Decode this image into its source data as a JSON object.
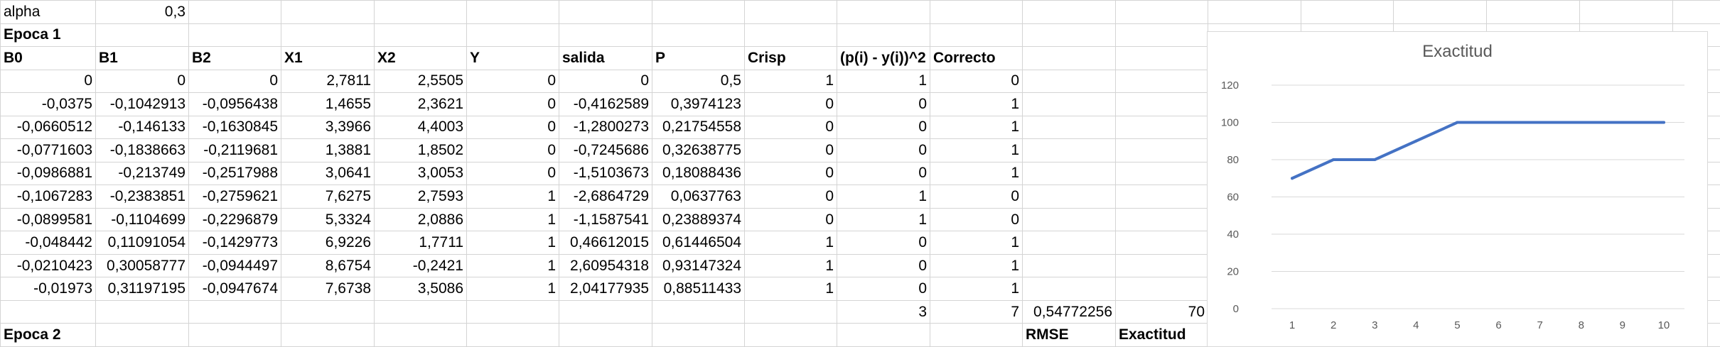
{
  "sheet": {
    "rows": [
      [
        "alpha",
        "0,3",
        "",
        "",
        "",
        "",
        "",
        "",
        "",
        "",
        "",
        "",
        "",
        "",
        "",
        "",
        "",
        "",
        ""
      ],
      [
        "Epoca 1",
        "",
        "",
        "",
        "",
        "",
        "",
        "",
        "",
        "",
        "",
        "",
        "",
        "",
        "",
        "",
        "",
        "",
        ""
      ],
      [
        "B0",
        "B1",
        "B2",
        "X1",
        "X2",
        "Y",
        "salida",
        "P",
        "Crisp",
        "(p(i) - y(i))^2",
        "Correcto",
        "",
        "",
        "",
        "",
        "",
        "",
        "",
        ""
      ],
      [
        "0",
        "0",
        "0",
        "2,7811",
        "2,5505",
        "0",
        "0",
        "0,5",
        "1",
        "1",
        "0",
        "",
        "",
        "",
        "",
        "",
        "",
        "",
        ""
      ],
      [
        "-0,0375",
        "-0,1042913",
        "-0,0956438",
        "1,4655",
        "2,3621",
        "0",
        "-0,4162589",
        "0,3974123",
        "0",
        "0",
        "1",
        "",
        "",
        "",
        "",
        "",
        "",
        "",
        ""
      ],
      [
        "-0,0660512",
        "-0,146133",
        "-0,1630845",
        "3,3966",
        "4,4003",
        "0",
        "-1,2800273",
        "0,21754558",
        "0",
        "0",
        "1",
        "",
        "",
        "",
        "",
        "",
        "",
        "",
        ""
      ],
      [
        "-0,0771603",
        "-0,1838663",
        "-0,2119681",
        "1,3881",
        "1,8502",
        "0",
        "-0,7245686",
        "0,32638775",
        "0",
        "0",
        "1",
        "",
        "",
        "",
        "",
        "",
        "",
        "",
        ""
      ],
      [
        "-0,0986881",
        "-0,213749",
        "-0,2517988",
        "3,0641",
        "3,0053",
        "0",
        "-1,5103673",
        "0,18088436",
        "0",
        "0",
        "1",
        "",
        "",
        "",
        "",
        "",
        "",
        "",
        ""
      ],
      [
        "-0,1067283",
        "-0,2383851",
        "-0,2759621",
        "7,6275",
        "2,7593",
        "1",
        "-2,6864729",
        "0,0637763",
        "0",
        "1",
        "0",
        "",
        "",
        "",
        "",
        "",
        "",
        "",
        ""
      ],
      [
        "-0,0899581",
        "-0,1104699",
        "-0,2296879",
        "5,3324",
        "2,0886",
        "1",
        "-1,1587541",
        "0,23889374",
        "0",
        "1",
        "0",
        "",
        "",
        "",
        "",
        "",
        "",
        "",
        ""
      ],
      [
        "-0,048442",
        "0,11091054",
        "-0,1429773",
        "6,9226",
        "1,7711",
        "1",
        "0,46612015",
        "0,61446504",
        "1",
        "0",
        "1",
        "",
        "",
        "",
        "",
        "",
        "",
        "",
        ""
      ],
      [
        "-0,0210423",
        "0,30058777",
        "-0,0944497",
        "8,6754",
        "-0,2421",
        "1",
        "2,60954318",
        "0,93147324",
        "1",
        "0",
        "1",
        "",
        "",
        "",
        "",
        "",
        "",
        "",
        ""
      ],
      [
        "-0,01973",
        "0,31197195",
        "-0,0947674",
        "7,6738",
        "3,5086",
        "1",
        "2,04177935",
        "0,88511433",
        "1",
        "0",
        "1",
        "",
        "",
        "",
        "",
        "",
        "",
        "",
        ""
      ],
      [
        "",
        "",
        "",
        "",
        "",
        "",
        "",
        "",
        "",
        "3",
        "7",
        "0,54772256",
        "70",
        "",
        "",
        "",
        "",
        "",
        ""
      ],
      [
        "Epoca 2",
        "",
        "",
        "",
        "",
        "",
        "",
        "",
        "",
        "",
        "",
        "RMSE",
        "Exactitud",
        "",
        "",
        "",
        "",
        "",
        ""
      ]
    ]
  },
  "chart_data": {
    "type": "line",
    "title": "Exactitud",
    "x": [
      "1",
      "2",
      "3",
      "4",
      "5",
      "6",
      "7",
      "8",
      "9",
      "10"
    ],
    "series": [
      {
        "values": [
          70,
          80,
          80,
          90,
          100,
          100,
          100,
          100,
          100,
          100
        ]
      }
    ],
    "ylim": [
      0,
      120
    ],
    "yticks": [
      "0",
      "20",
      "40",
      "60",
      "80",
      "100",
      "120"
    ],
    "grid": true,
    "legend": "none",
    "color": "#4472c4"
  }
}
